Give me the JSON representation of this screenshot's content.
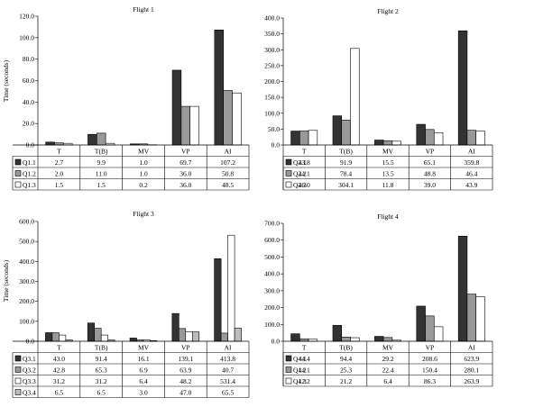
{
  "chart_data": [
    {
      "type": "bar",
      "title": "Flight 1",
      "ylabel": "Time (seconds)",
      "ylim": [
        0,
        120
      ],
      "yticks": [
        "0.0",
        "20.0",
        "40.0",
        "60.0",
        "80.0",
        "100.0",
        "120.0"
      ],
      "categories": [
        "T",
        "T(B)",
        "MV",
        "VP",
        "AI"
      ],
      "series": [
        {
          "name": "Q1.1",
          "fill": "#333333",
          "values": [
            2.7,
            9.9,
            1.0,
            69.7,
            107.2
          ],
          "labels": [
            "2.7",
            "9.9",
            "1.0",
            "69.7",
            "107.2"
          ]
        },
        {
          "name": "Q1.2",
          "fill": "#999999",
          "values": [
            2.0,
            11.0,
            1.0,
            36.0,
            50.8
          ],
          "labels": [
            "2.0",
            "11.0",
            "1.0",
            "36.0",
            "50.8"
          ]
        },
        {
          "name": "Q1.3",
          "fill": "#ffffff",
          "values": [
            1.5,
            1.5,
            0.2,
            36.0,
            48.5
          ],
          "labels": [
            "1.5",
            "1.5",
            "0.2",
            "36.0",
            "48.5"
          ]
        }
      ]
    },
    {
      "type": "bar",
      "title": "Flight 2",
      "ylabel": "",
      "ylim": [
        0,
        400
      ],
      "yticks": [
        "0.0",
        "50.0",
        "100.0",
        "150.0",
        "200.0",
        "250.0",
        "300.0",
        "350.0",
        "400.0"
      ],
      "categories": [
        "T",
        "T(B)",
        "MV",
        "VP",
        "AI"
      ],
      "series": [
        {
          "name": "Q2.1",
          "fill": "#333333",
          "values": [
            43.8,
            91.9,
            15.5,
            65.1,
            359.8
          ],
          "labels": [
            "43.8",
            "91.9",
            "15.5",
            "65.1",
            "359.8"
          ]
        },
        {
          "name": "Q2.2",
          "fill": "#999999",
          "values": [
            44.1,
            78.4,
            13.5,
            48.8,
            46.4
          ],
          "labels": [
            "44.1",
            "78.4",
            "13.5",
            "48.8",
            "46.4"
          ]
        },
        {
          "name": "Q2.3",
          "fill": "#ffffff",
          "values": [
            46.0,
            304.1,
            11.8,
            39.0,
            43.9
          ],
          "labels": [
            "46.0",
            "304.1",
            "11.8",
            "39.0",
            "43.9"
          ]
        }
      ]
    },
    {
      "type": "bar",
      "title": "Flight 3",
      "ylabel": "Time (seconds)",
      "ylim": [
        0,
        600
      ],
      "yticks": [
        "0.0",
        "100.0",
        "200.0",
        "300.0",
        "400.0",
        "500.0",
        "600.0"
      ],
      "categories": [
        "T",
        "T(B)",
        "MV",
        "VP",
        "AI"
      ],
      "series": [
        {
          "name": "Q3.1",
          "fill": "#333333",
          "values": [
            43.0,
            91.4,
            16.1,
            139.1,
            413.8
          ],
          "labels": [
            "43.0",
            "91.4",
            "16.1",
            "139.1",
            "413.8"
          ]
        },
        {
          "name": "Q3.2",
          "fill": "#999999",
          "values": [
            42.8,
            65.3,
            6.9,
            63.9,
            40.7
          ],
          "labels": [
            "42.8",
            "65.3",
            "6.9",
            "63.9",
            "40.7"
          ]
        },
        {
          "name": "Q3.3",
          "fill": "#ffffff",
          "values": [
            31.2,
            31.2,
            6.4,
            48.2,
            531.4
          ],
          "labels": [
            "31.2",
            "31.2",
            "6.4",
            "48.2",
            "531.4"
          ]
        },
        {
          "name": "Q3.4",
          "fill": "#bdbdbd",
          "values": [
            6.5,
            6.5,
            3.0,
            47.0,
            65.5
          ],
          "labels": [
            "6.5",
            "6.5",
            "3.0",
            "47.0",
            "65.5"
          ]
        }
      ]
    },
    {
      "type": "bar",
      "title": "Flight 4",
      "ylabel": "",
      "ylim": [
        0,
        700
      ],
      "yticks": [
        "0.0",
        "100.0",
        "200.0",
        "300.0",
        "400.0",
        "500.0",
        "600.0",
        "700.0"
      ],
      "categories": [
        "T",
        "T(B)",
        "MV",
        "VP",
        "AI"
      ],
      "series": [
        {
          "name": "Q4.1",
          "fill": "#333333",
          "values": [
            44.4,
            94.4,
            29.2,
            208.6,
            623.9
          ],
          "labels": [
            "44.4",
            "94.4",
            "29.2",
            "208.6",
            "623.9"
          ]
        },
        {
          "name": "Q4.2",
          "fill": "#999999",
          "values": [
            14.1,
            25.3,
            22.4,
            150.4,
            280.1
          ],
          "labels": [
            "14.1",
            "25.3",
            "22.4",
            "150.4",
            "280.1"
          ]
        },
        {
          "name": "Q4.3",
          "fill": "#ffffff",
          "values": [
            12.2,
            21.2,
            6.4,
            86.3,
            263.9
          ],
          "labels": [
            "12.2",
            "21.2",
            "6.4",
            "86.3",
            "263.9"
          ]
        }
      ]
    }
  ]
}
